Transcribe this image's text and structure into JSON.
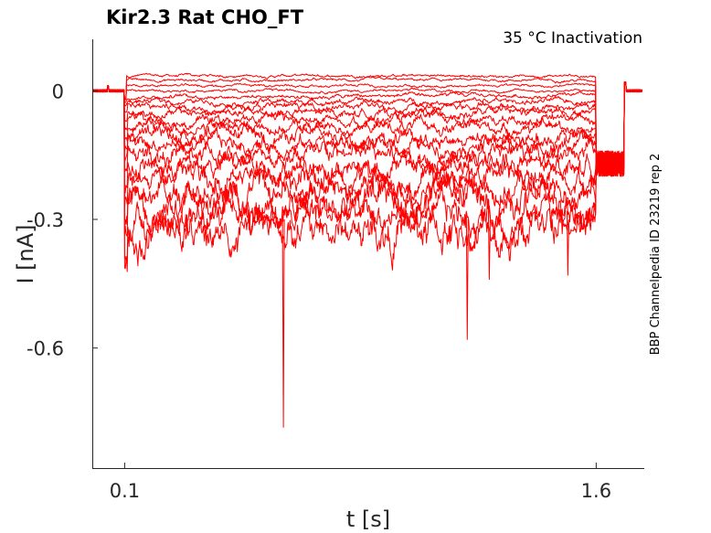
{
  "chart_data": {
    "type": "line",
    "title": "Kir2.3  Rat  CHO_FT",
    "subtitle": "35 °C  Inactivation",
    "xlabel": "t [s]",
    "ylabel": "I [nA]",
    "side_label": "BBP Channelpedia ID 23219 rep 2",
    "x_ticks": [
      0.1,
      1.6
    ],
    "x_tick_labels": [
      "0.1",
      "1.6"
    ],
    "y_ticks": [
      0,
      -0.3,
      -0.6
    ],
    "y_tick_labels": [
      "0",
      "-0.3",
      "-0.6"
    ],
    "xlim": [
      -0.003,
      1.753
    ],
    "ylim": [
      -0.88,
      0.12
    ],
    "grid": false,
    "trace_color": "#ff0000",
    "pulse_start": 0.1,
    "pulse_end": 1.6,
    "tail_end": 1.69,
    "baseline": 0.0,
    "tail_level": -0.17,
    "sweep_levels": [
      0.035,
      0.025,
      0.012,
      0.0,
      -0.012,
      -0.025,
      -0.038,
      -0.052,
      -0.068,
      -0.085,
      -0.105,
      -0.125,
      -0.15,
      -0.175,
      -0.2,
      -0.23,
      -0.26,
      -0.29,
      -0.33
    ],
    "spikes": [
      {
        "t": 0.605,
        "value": -0.785
      },
      {
        "t": 1.19,
        "value": -0.58
      },
      {
        "t": 1.26,
        "value": -0.44
      },
      {
        "t": 1.51,
        "value": -0.43
      }
    ]
  }
}
